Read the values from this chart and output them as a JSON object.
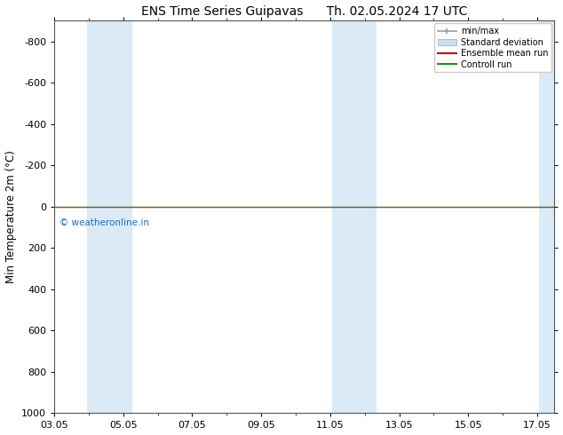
{
  "title_left": "ENS Time Series Guipavas",
  "title_right": "Th. 02.05.2024 17 UTC",
  "ylabel": "Min Temperature 2m (°C)",
  "xtick_labels": [
    "03.05",
    "05.05",
    "07.05",
    "09.05",
    "11.05",
    "13.05",
    "15.05",
    "17.05"
  ],
  "xtick_positions": [
    3,
    5,
    7,
    9,
    11,
    13,
    15,
    17
  ],
  "ytick_values": [
    -800,
    -600,
    -400,
    -200,
    0,
    200,
    400,
    600,
    800,
    1000
  ],
  "ylim_top": -900,
  "ylim_bottom": 1000,
  "xlim_min": 3.0,
  "xlim_max": 17.5,
  "background_color": "#ffffff",
  "plot_bg_color": "#ffffff",
  "shaded_bands": [
    {
      "x_start": 3.95,
      "x_end": 4.55,
      "color": "#daeaf7"
    },
    {
      "x_start": 4.55,
      "x_end": 5.25,
      "color": "#daeaf7"
    },
    {
      "x_start": 11.05,
      "x_end": 11.65,
      "color": "#daeaf7"
    },
    {
      "x_start": 11.65,
      "x_end": 12.35,
      "color": "#daeaf7"
    },
    {
      "x_start": 17.05,
      "x_end": 17.5,
      "color": "#daeaf7"
    }
  ],
  "control_run_color": "#228B22",
  "ensemble_mean_color": "#cc0000",
  "watermark_text": "© weatheronline.in",
  "watermark_color": "#1a6ebf",
  "legend_labels": [
    "min/max",
    "Standard deviation",
    "Ensemble mean run",
    "Controll run"
  ],
  "legend_colors_line": [
    "#999999",
    "#bbccdd",
    "#cc0000",
    "#228B22"
  ],
  "title_fontsize": 10,
  "tick_fontsize": 8,
  "ylabel_fontsize": 8.5
}
